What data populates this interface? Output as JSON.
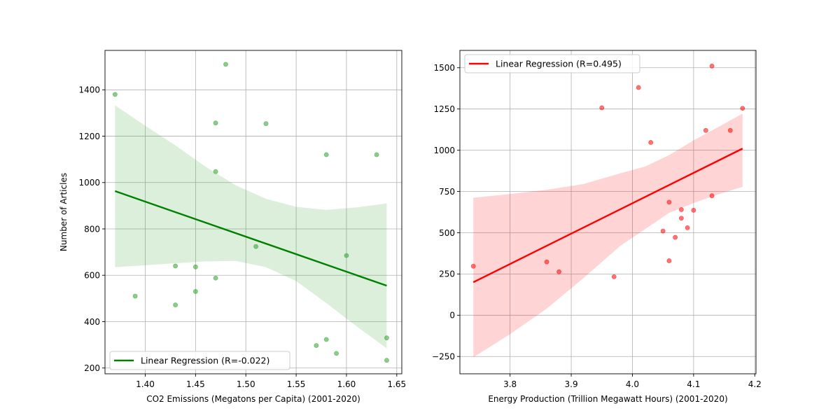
{
  "chart_data": [
    {
      "type": "scatter",
      "title": "",
      "xlabel": "CO2 Emissions (Megatons per Capita) (2001-2020)",
      "ylabel": "Number of Articles",
      "xlim": [
        1.36,
        1.655
      ],
      "ylim": [
        175,
        1570
      ],
      "xticks": [
        1.4,
        1.45,
        1.5,
        1.55,
        1.6,
        1.65
      ],
      "xtick_labels": [
        "1.40",
        "1.45",
        "1.50",
        "1.55",
        "1.60",
        "1.65"
      ],
      "yticks": [
        200,
        400,
        600,
        800,
        1000,
        1200,
        1400
      ],
      "ytick_labels": [
        "200",
        "400",
        "600",
        "800",
        "1000",
        "1200",
        "1400"
      ],
      "grid": true,
      "legend_position": "lower-left",
      "point_color": "#2ca02c",
      "line_color": "#008000",
      "band_color": "#2ca02c",
      "points": [
        {
          "x": 1.37,
          "y": 1380
        },
        {
          "x": 1.39,
          "y": 510
        },
        {
          "x": 1.43,
          "y": 640
        },
        {
          "x": 1.43,
          "y": 472
        },
        {
          "x": 1.45,
          "y": 636
        },
        {
          "x": 1.45,
          "y": 530
        },
        {
          "x": 1.47,
          "y": 1257
        },
        {
          "x": 1.47,
          "y": 1047
        },
        {
          "x": 1.47,
          "y": 588
        },
        {
          "x": 1.48,
          "y": 1510
        },
        {
          "x": 1.51,
          "y": 724
        },
        {
          "x": 1.52,
          "y": 1254
        },
        {
          "x": 1.57,
          "y": 297
        },
        {
          "x": 1.58,
          "y": 1120
        },
        {
          "x": 1.58,
          "y": 323
        },
        {
          "x": 1.59,
          "y": 263
        },
        {
          "x": 1.6,
          "y": 685
        },
        {
          "x": 1.63,
          "y": 1120
        },
        {
          "x": 1.64,
          "y": 330
        },
        {
          "x": 1.64,
          "y": 233
        }
      ],
      "regression": {
        "label": "Linear Regression (R=-0.022)",
        "x": [
          1.37,
          1.64
        ],
        "y": [
          963,
          555
        ]
      },
      "confidence_band": [
        {
          "x": 1.37,
          "lo": 635,
          "hi": 1333
        },
        {
          "x": 1.4,
          "lo": 643,
          "hi": 1245
        },
        {
          "x": 1.43,
          "lo": 652,
          "hi": 1160
        },
        {
          "x": 1.46,
          "lo": 660,
          "hi": 1068
        },
        {
          "x": 1.49,
          "lo": 662,
          "hi": 988
        },
        {
          "x": 1.52,
          "lo": 635,
          "hi": 930
        },
        {
          "x": 1.55,
          "lo": 575,
          "hi": 895
        },
        {
          "x": 1.58,
          "lo": 480,
          "hi": 882
        },
        {
          "x": 1.61,
          "lo": 380,
          "hi": 893
        },
        {
          "x": 1.64,
          "lo": 285,
          "hi": 910
        }
      ]
    },
    {
      "type": "scatter",
      "title": "",
      "xlabel": "Energy Production (Trillion Megawatt Hours) (2001-2020)",
      "ylabel": "",
      "xlim": [
        3.718,
        4.202
      ],
      "ylim": [
        -355,
        1605
      ],
      "xticks": [
        3.8,
        3.9,
        4.0,
        4.1,
        4.2
      ],
      "xtick_labels": [
        "3.8",
        "3.9",
        "4.0",
        "4.1",
        "4.2"
      ],
      "yticks": [
        -250,
        0,
        250,
        500,
        750,
        1000,
        1250,
        1500
      ],
      "ytick_labels": [
        "−250",
        "0",
        "250",
        "500",
        "750",
        "1000",
        "1250",
        "1500"
      ],
      "grid": true,
      "legend_position": "upper-left",
      "point_color": "#ff0000",
      "line_color": "#ff0000",
      "band_color": "#ff0000",
      "points": [
        {
          "x": 3.74,
          "y": 297
        },
        {
          "x": 3.86,
          "y": 323
        },
        {
          "x": 3.88,
          "y": 263
        },
        {
          "x": 3.95,
          "y": 1257
        },
        {
          "x": 3.97,
          "y": 233
        },
        {
          "x": 4.01,
          "y": 1380
        },
        {
          "x": 4.03,
          "y": 1047
        },
        {
          "x": 4.05,
          "y": 510
        },
        {
          "x": 4.06,
          "y": 685
        },
        {
          "x": 4.06,
          "y": 330
        },
        {
          "x": 4.07,
          "y": 472
        },
        {
          "x": 4.08,
          "y": 640
        },
        {
          "x": 4.08,
          "y": 588
        },
        {
          "x": 4.09,
          "y": 530
        },
        {
          "x": 4.1,
          "y": 636
        },
        {
          "x": 4.12,
          "y": 1120
        },
        {
          "x": 4.13,
          "y": 1510
        },
        {
          "x": 4.13,
          "y": 724
        },
        {
          "x": 4.16,
          "y": 1120
        },
        {
          "x": 4.18,
          "y": 1254
        }
      ],
      "regression": {
        "label": "Linear Regression (R=0.495)",
        "x": [
          3.74,
          4.18
        ],
        "y": [
          200,
          1010
        ]
      },
      "confidence_band": [
        {
          "x": 3.74,
          "lo": -255,
          "hi": 712
        },
        {
          "x": 3.8,
          "lo": -115,
          "hi": 735
        },
        {
          "x": 3.86,
          "lo": 40,
          "hi": 760
        },
        {
          "x": 3.92,
          "lo": 225,
          "hi": 795
        },
        {
          "x": 3.98,
          "lo": 420,
          "hi": 860
        },
        {
          "x": 4.02,
          "lo": 520,
          "hi": 900
        },
        {
          "x": 4.06,
          "lo": 620,
          "hi": 970
        },
        {
          "x": 4.1,
          "lo": 680,
          "hi": 1060
        },
        {
          "x": 4.14,
          "lo": 732,
          "hi": 1140
        },
        {
          "x": 4.18,
          "lo": 778,
          "hi": 1222
        }
      ]
    }
  ]
}
